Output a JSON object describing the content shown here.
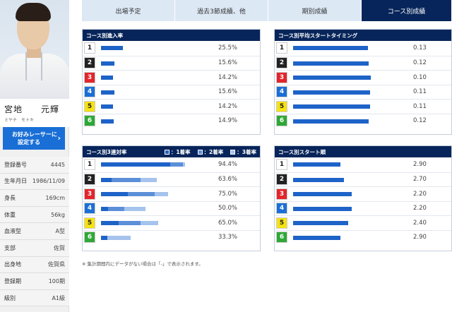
{
  "colors": {
    "accent": "#07255a",
    "bar1": "#1e63c8",
    "bar2": "#5b8fd8",
    "bar3": "#a5c3ec",
    "tab_inactive": "#dde8f5"
  },
  "racer": {
    "name": "宮地　　元輝",
    "kana": "ミヤチ　モトキ",
    "fav_button": [
      "お好みレーサーに",
      "設定する"
    ],
    "profile": [
      {
        "k": "登録番号",
        "v": "4445"
      },
      {
        "k": "生年月日",
        "v": "1986/11/09"
      },
      {
        "k": "身長",
        "v": "169cm"
      },
      {
        "k": "体重",
        "v": "56kg"
      },
      {
        "k": "血液型",
        "v": "A型"
      },
      {
        "k": "支部",
        "v": "佐賀"
      },
      {
        "k": "出身地",
        "v": "佐賀県"
      },
      {
        "k": "登録期",
        "v": "100期"
      },
      {
        "k": "級別",
        "v": "A1級"
      }
    ]
  },
  "tabs": [
    {
      "label": "出場予定",
      "active": false
    },
    {
      "label": "過去3節成績、他",
      "active": false
    },
    {
      "label": "期別成績",
      "active": false
    },
    {
      "label": "コース別成績",
      "active": true
    }
  ],
  "lane_colors": [
    {
      "bg": "#ffffff",
      "fg": "#222222"
    },
    {
      "bg": "#222222",
      "fg": "#ffffff"
    },
    {
      "bg": "#e3242b",
      "fg": "#ffffff"
    },
    {
      "bg": "#1a6fd6",
      "fg": "#ffffff"
    },
    {
      "bg": "#f5e211",
      "fg": "#222222"
    },
    {
      "bg": "#2ea836",
      "fg": "#ffffff"
    }
  ],
  "panels": {
    "entry_rate": {
      "title": "コース別進入率",
      "rows": [
        {
          "lane": "1",
          "pct": 25.5,
          "label": "25.5%"
        },
        {
          "lane": "2",
          "pct": 15.6,
          "label": "15.6%"
        },
        {
          "lane": "3",
          "pct": 14.2,
          "label": "14.2%"
        },
        {
          "lane": "4",
          "pct": 15.6,
          "label": "15.6%"
        },
        {
          "lane": "5",
          "pct": 14.2,
          "label": "14.2%"
        },
        {
          "lane": "6",
          "pct": 14.9,
          "label": "14.9%"
        }
      ]
    },
    "avg_start": {
      "title": "コース別平均スタートタイミング",
      "rows": [
        {
          "lane": "1",
          "level": 0.88,
          "label": "0.13"
        },
        {
          "lane": "2",
          "level": 0.89,
          "label": "0.12"
        },
        {
          "lane": "3",
          "level": 0.92,
          "label": "0.10"
        },
        {
          "lane": "4",
          "level": 0.91,
          "label": "0.11"
        },
        {
          "lane": "5",
          "level": 0.91,
          "label": "0.11"
        },
        {
          "lane": "6",
          "level": 0.89,
          "label": "0.12"
        }
      ]
    },
    "top3_rate": {
      "title": "コース別3連対率",
      "legend": [
        "：1着率",
        "：2着率",
        "：3着率"
      ],
      "rows": [
        {
          "lane": "1",
          "p1": 78.0,
          "p2": 14.0,
          "p3": 2.4,
          "label": "94.4%"
        },
        {
          "lane": "2",
          "p1": 12.0,
          "p2": 33.0,
          "p3": 18.6,
          "label": "63.6%"
        },
        {
          "lane": "3",
          "p1": 30.0,
          "p2": 30.0,
          "p3": 15.0,
          "label": "75.0%"
        },
        {
          "lane": "4",
          "p1": 8.0,
          "p2": 18.0,
          "p3": 24.0,
          "label": "50.0%"
        },
        {
          "lane": "5",
          "p1": 20.0,
          "p2": 25.0,
          "p3": 20.0,
          "label": "65.0%"
        },
        {
          "lane": "6",
          "p1": 7.0,
          "p2": 0.0,
          "p3": 26.3,
          "label": "33.3%"
        }
      ]
    },
    "start_order": {
      "title": "コース別スタート順",
      "rows": [
        {
          "lane": "1",
          "level": 0.56,
          "label": "2.90"
        },
        {
          "lane": "2",
          "level": 0.6,
          "label": "2.70"
        },
        {
          "lane": "3",
          "level": 0.69,
          "label": "2.20"
        },
        {
          "lane": "4",
          "level": 0.69,
          "label": "2.20"
        },
        {
          "lane": "5",
          "level": 0.65,
          "label": "2.40"
        },
        {
          "lane": "6",
          "level": 0.56,
          "label": "2.90"
        }
      ]
    }
  },
  "note": "※ 集計期間内にデータがない場合は「-」で表示されます。"
}
